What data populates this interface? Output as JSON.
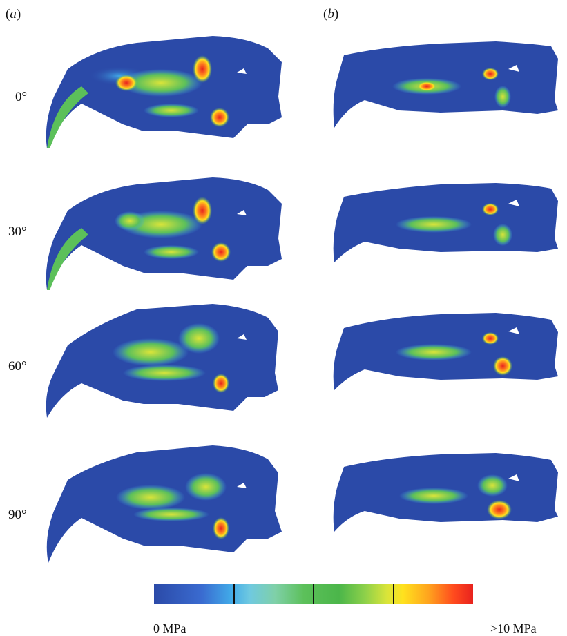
{
  "panels": {
    "a": "a",
    "b": "b"
  },
  "angles": [
    "0°",
    "30°",
    "60°",
    "90°"
  ],
  "colorbar": {
    "min_label": "0 MPa",
    "max_label": ">10 MPa"
  },
  "colors": {
    "low": "#2b4aa8",
    "mid_low": "#41a9e8",
    "mid": "#4bb64a",
    "high_mid": "#ffe21e",
    "high": "#e8221e"
  }
}
